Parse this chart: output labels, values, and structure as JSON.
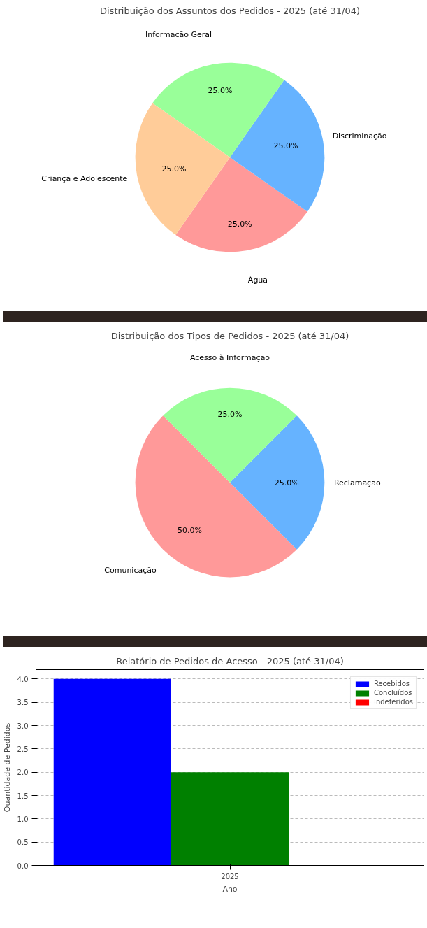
{
  "chart_data": [
    {
      "type": "pie",
      "title": "Distribuição dos Assuntos dos Pedidos - 2025 (até 31/04)",
      "categories": [
        "Água",
        "Discriminação",
        "Informação Geral",
        "Criança e Adolescente"
      ],
      "values": [
        25,
        25,
        25,
        25
      ],
      "colors": [
        "#ff9999",
        "#66b3ff",
        "#99ff99",
        "#ffcc99"
      ],
      "value_labels": [
        "25.0%",
        "25.0%",
        "25.0%",
        "25.0%"
      ]
    },
    {
      "type": "pie",
      "title": "Distribuição dos Tipos de Pedidos - 2025 (até 31/04)",
      "categories": [
        "Comunicação",
        "Reclamação",
        "Acesso à Informação"
      ],
      "values": [
        50,
        25,
        25
      ],
      "colors": [
        "#ff9999",
        "#66b3ff",
        "#99ff99"
      ],
      "value_labels": [
        "50.0%",
        "25.0%",
        "25.0%"
      ]
    },
    {
      "type": "bar",
      "title": "Relatório de Pedidos de Acesso - 2025 (até 31/04)",
      "xlabel": "Ano",
      "ylabel": "Quantidade de Pedidos",
      "categories": [
        "2025"
      ],
      "series": [
        {
          "name": "Recebidos",
          "color": "#0000ff",
          "values": [
            4
          ]
        },
        {
          "name": "Concluídos",
          "color": "#008000",
          "values": [
            2
          ]
        },
        {
          "name": "Indeferidos",
          "color": "#ff0000",
          "values": [
            0
          ]
        }
      ],
      "ylim": [
        0,
        4.2
      ],
      "yticks": [
        {
          "value": 0,
          "label": "0.0"
        },
        {
          "value": 0.5,
          "label": "0.5"
        },
        {
          "value": 1,
          "label": "1.0"
        },
        {
          "value": 1.5,
          "label": "1.5"
        },
        {
          "value": 2,
          "label": "2.0"
        },
        {
          "value": 2.5,
          "label": "2.5"
        },
        {
          "value": 3,
          "label": "3.0"
        },
        {
          "value": 3.5,
          "label": "3.5"
        },
        {
          "value": 4,
          "label": "4.0"
        }
      ],
      "grid": "y",
      "legend": "top right"
    }
  ]
}
